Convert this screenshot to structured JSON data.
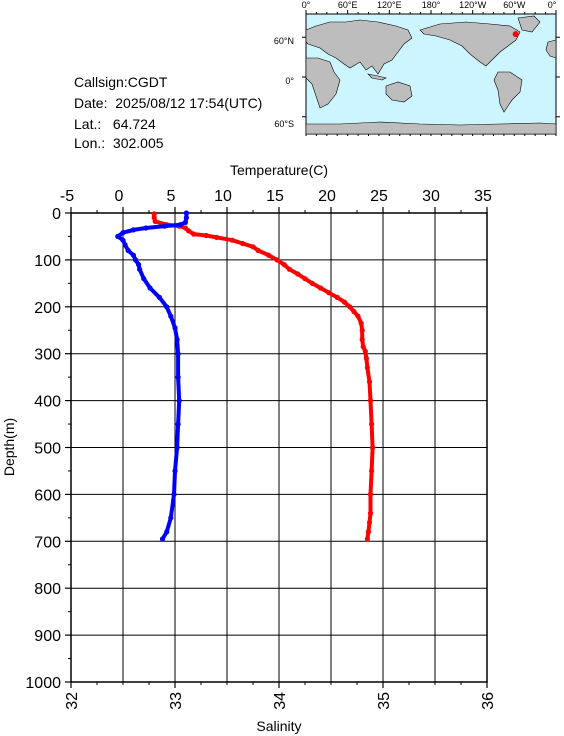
{
  "header": {
    "callsign_label": "Callsign:",
    "callsign": "CGDT",
    "date_label": "Date:",
    "date": "2025/08/12 17:54(UTC)",
    "lat_label": "Lat.:",
    "lat": "64.724",
    "lon_label": "Lon.:",
    "lon": "302.005"
  },
  "map": {
    "top_ticks": [
      "0°",
      "60°E",
      "120°E",
      "180°",
      "120°W",
      "60°W",
      "0°"
    ],
    "right_ticks": [
      "60°N",
      "0°",
      "60°S"
    ],
    "ocean_color": "#ccf5ff",
    "land_color": "#bdbdbd",
    "station_color": "#ff0000",
    "station_lat": 64.724,
    "station_lon": 302.005
  },
  "chart_data": {
    "type": "line",
    "ylabel": "Depth(m)",
    "ylim": [
      1000,
      0
    ],
    "yticks": [
      0,
      100,
      200,
      300,
      400,
      500,
      600,
      700,
      800,
      900,
      1000
    ],
    "top_axis": {
      "label": "Temperature(C)",
      "lim": [
        -5,
        35
      ],
      "ticks": [
        -5,
        0,
        5,
        10,
        15,
        20,
        25,
        30,
        35
      ]
    },
    "bottom_axis": {
      "label": "Salinity",
      "lim": [
        32,
        36
      ],
      "ticks": [
        32,
        33,
        34,
        35,
        36
      ]
    },
    "grid": true,
    "series": [
      {
        "quantity": "temperature",
        "axis": "top",
        "color": "#ff0000",
        "points": [
          [
            3.0,
            2
          ],
          [
            3.0,
            10
          ],
          [
            3.1,
            18
          ],
          [
            4.2,
            25
          ],
          [
            5.4,
            28
          ],
          [
            6.0,
            32
          ],
          [
            6.3,
            38
          ],
          [
            6.8,
            45
          ],
          [
            8.0,
            48
          ],
          [
            9.0,
            52
          ],
          [
            10.5,
            58
          ],
          [
            11.5,
            65
          ],
          [
            12.5,
            72
          ],
          [
            13.0,
            80
          ],
          [
            14.0,
            90
          ],
          [
            14.8,
            100
          ],
          [
            15.5,
            110
          ],
          [
            16.0,
            120
          ],
          [
            16.8,
            130
          ],
          [
            17.5,
            140
          ],
          [
            18.2,
            150
          ],
          [
            19.0,
            160
          ],
          [
            19.8,
            170
          ],
          [
            20.6,
            180
          ],
          [
            21.3,
            190
          ],
          [
            21.8,
            200
          ],
          [
            22.2,
            210
          ],
          [
            22.6,
            220
          ],
          [
            22.9,
            235
          ],
          [
            23.0,
            250
          ],
          [
            23.0,
            270
          ],
          [
            23.1,
            285
          ],
          [
            23.3,
            295
          ],
          [
            23.4,
            310
          ],
          [
            23.5,
            330
          ],
          [
            23.7,
            360
          ],
          [
            23.8,
            400
          ],
          [
            23.9,
            450
          ],
          [
            24.0,
            500
          ],
          [
            23.9,
            550
          ],
          [
            23.8,
            600
          ],
          [
            23.8,
            640
          ],
          [
            23.7,
            660
          ],
          [
            23.6,
            680
          ],
          [
            23.5,
            695
          ]
        ]
      },
      {
        "quantity": "salinity",
        "axis": "bottom",
        "color": "#0000ff",
        "points": [
          [
            33.11,
            0
          ],
          [
            33.11,
            10
          ],
          [
            33.1,
            20
          ],
          [
            33.05,
            25
          ],
          [
            32.9,
            28
          ],
          [
            32.72,
            32
          ],
          [
            32.6,
            36
          ],
          [
            32.5,
            42
          ],
          [
            32.45,
            50
          ],
          [
            32.5,
            58
          ],
          [
            32.52,
            68
          ],
          [
            32.55,
            80
          ],
          [
            32.6,
            90
          ],
          [
            32.62,
            100
          ],
          [
            32.65,
            110
          ],
          [
            32.66,
            120
          ],
          [
            32.7,
            140
          ],
          [
            32.76,
            160
          ],
          [
            32.85,
            180
          ],
          [
            32.92,
            200
          ],
          [
            32.96,
            220
          ],
          [
            33.0,
            245
          ],
          [
            33.02,
            270
          ],
          [
            33.03,
            300
          ],
          [
            33.03,
            350
          ],
          [
            33.04,
            400
          ],
          [
            33.03,
            450
          ],
          [
            33.02,
            500
          ],
          [
            33.0,
            550
          ],
          [
            32.99,
            600
          ],
          [
            32.96,
            650
          ],
          [
            32.92,
            680
          ],
          [
            32.88,
            695
          ]
        ]
      }
    ]
  }
}
